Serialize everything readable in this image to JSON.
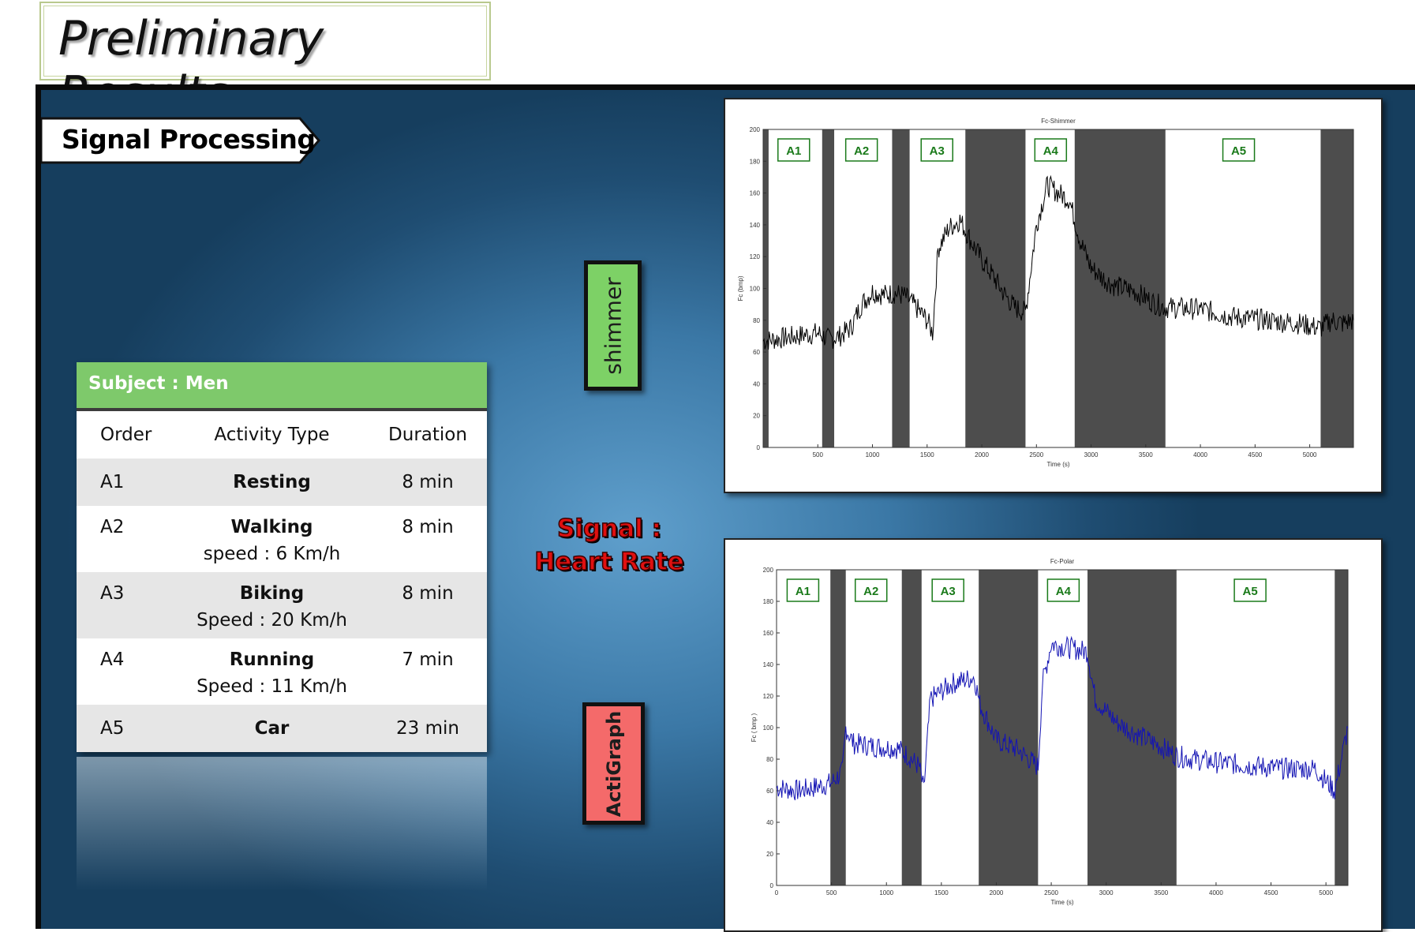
{
  "header": {
    "title": "Preliminary Results"
  },
  "section": {
    "label": "Signal Processing"
  },
  "table": {
    "header": "Subject : Men",
    "columns": [
      "Order",
      "Activity Type",
      "Duration"
    ],
    "rows": [
      {
        "order": "A1",
        "activity": "Resting",
        "speed": "",
        "duration": "8 min"
      },
      {
        "order": "A2",
        "activity": "Walking",
        "speed": "speed : 6 Km/h",
        "duration": "8 min"
      },
      {
        "order": "A3",
        "activity": "Biking",
        "speed": "Speed : 20 Km/h",
        "duration": "8 min"
      },
      {
        "order": "A4",
        "activity": "Running",
        "speed": "Speed : 11 Km/h",
        "duration": "7 min"
      },
      {
        "order": "A5",
        "activity": "Car",
        "speed": "",
        "duration": "23 min"
      }
    ]
  },
  "logos": {
    "shimmer": "shimmer",
    "actigraph": "ActiGraph"
  },
  "signal_label": {
    "line1": "Signal :",
    "line2": "Heart Rate"
  },
  "colors": {
    "panel": "#3b78a6",
    "table_header": "#7ec96b",
    "shimmer_logo": "#7dd166",
    "actigraph_logo": "#f46a6a",
    "signal_text": "#e01010",
    "shimmer_trace": "#000000",
    "polar_trace": "#1414b4",
    "annotation_box": "#1a7a1a",
    "shaded_region": "#4d4d4d"
  },
  "chart_data": [
    {
      "type": "line",
      "title": "Fc-Shimmer",
      "xlabel": "Time (s)",
      "ylabel": "Fc (bmp)",
      "xlim": [
        0,
        5400
      ],
      "ylim": [
        0,
        200
      ],
      "xticks": [
        500,
        1000,
        1500,
        2000,
        2500,
        3000,
        3500,
        4000,
        4500,
        5000
      ],
      "yticks": [
        0,
        20,
        40,
        60,
        80,
        100,
        120,
        140,
        160,
        180,
        200
      ],
      "series_color": "#000000",
      "shaded_intervals": [
        [
          0,
          50
        ],
        [
          540,
          650
        ],
        [
          1180,
          1340
        ],
        [
          1850,
          2400
        ],
        [
          2850,
          3680
        ],
        [
          5100,
          5400
        ]
      ],
      "annotations": [
        {
          "label": "A1",
          "x": 280
        },
        {
          "label": "A2",
          "x": 900
        },
        {
          "label": "A3",
          "x": 1590
        },
        {
          "label": "A4",
          "x": 2630
        },
        {
          "label": "A5",
          "x": 4350
        }
      ],
      "x": [
        0,
        300,
        500,
        600,
        700,
        800,
        900,
        1000,
        1100,
        1200,
        1300,
        1400,
        1500,
        1550,
        1600,
        1700,
        1800,
        1900,
        2000,
        2100,
        2200,
        2300,
        2400,
        2500,
        2600,
        2700,
        2800,
        2900,
        3000,
        3100,
        3200,
        3400,
        3600,
        3700,
        4000,
        4300,
        4600,
        4900,
        5100,
        5200,
        5300,
        5400
      ],
      "y": [
        67,
        70,
        72,
        68,
        70,
        75,
        90,
        98,
        96,
        97,
        95,
        88,
        80,
        72,
        125,
        138,
        143,
        130,
        118,
        108,
        97,
        88,
        85,
        140,
        165,
        160,
        156,
        130,
        113,
        107,
        102,
        98,
        90,
        88,
        87,
        82,
        80,
        78,
        75,
        80,
        78,
        80
      ]
    },
    {
      "type": "line",
      "title": "Fc-Polar",
      "xlabel": "Time (s)",
      "ylabel": "Fc ( bmp )",
      "xlim": [
        0,
        5200
      ],
      "ylim": [
        0,
        200
      ],
      "xticks": [
        0,
        500,
        1000,
        1500,
        2000,
        2500,
        3000,
        3500,
        4000,
        4500,
        5000
      ],
      "yticks": [
        0,
        20,
        40,
        60,
        80,
        100,
        120,
        140,
        160,
        180,
        200
      ],
      "series_color": "#1414b4",
      "shaded_intervals": [
        [
          490,
          630
        ],
        [
          1140,
          1320
        ],
        [
          1840,
          2380
        ],
        [
          2830,
          3640
        ],
        [
          5080,
          5200
        ]
      ],
      "annotations": [
        {
          "label": "A1",
          "x": 240
        },
        {
          "label": "A2",
          "x": 860
        },
        {
          "label": "A3",
          "x": 1560
        },
        {
          "label": "A4",
          "x": 2610
        },
        {
          "label": "A5",
          "x": 4310
        }
      ],
      "x": [
        0,
        200,
        400,
        500,
        600,
        630,
        700,
        900,
        1100,
        1200,
        1300,
        1340,
        1400,
        1600,
        1800,
        1850,
        2000,
        2200,
        2380,
        2420,
        2500,
        2700,
        2830,
        2900,
        3100,
        3300,
        3500,
        3640,
        3800,
        4000,
        4300,
        4600,
        4900,
        5080,
        5200
      ],
      "y": [
        62,
        60,
        63,
        65,
        72,
        100,
        90,
        88,
        87,
        82,
        75,
        60,
        118,
        128,
        132,
        115,
        92,
        86,
        75,
        128,
        153,
        150,
        148,
        118,
        103,
        95,
        88,
        82,
        80,
        78,
        76,
        74,
        74,
        60,
        100
      ]
    }
  ]
}
